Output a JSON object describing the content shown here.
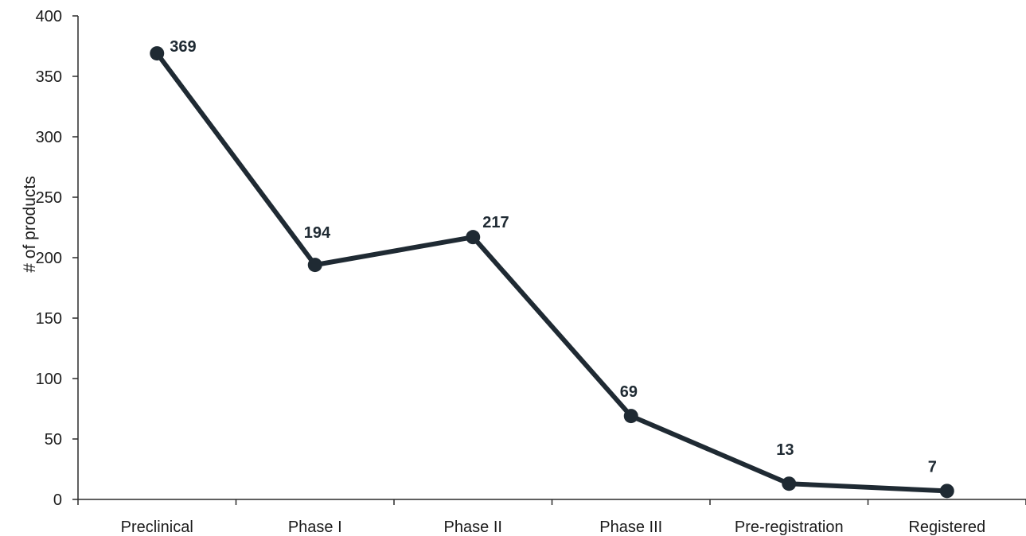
{
  "chart_data": {
    "type": "line",
    "title": "",
    "xlabel": "",
    "ylabel": "# of products",
    "categories": [
      "Preclinical",
      "Phase I",
      "Phase II",
      "Phase III",
      "Pre-registration",
      "Registered"
    ],
    "values": [
      369,
      194,
      217,
      69,
      13,
      7
    ],
    "data_labels": [
      "369",
      "194",
      "217",
      "69",
      "13",
      "7"
    ],
    "ylim": [
      0,
      400
    ],
    "yticks": [
      0,
      50,
      100,
      150,
      200,
      250,
      300,
      350,
      400
    ],
    "grid": false,
    "legend": "none",
    "line_color": "#1f2a33",
    "axis_color": "#2b2b2b"
  }
}
